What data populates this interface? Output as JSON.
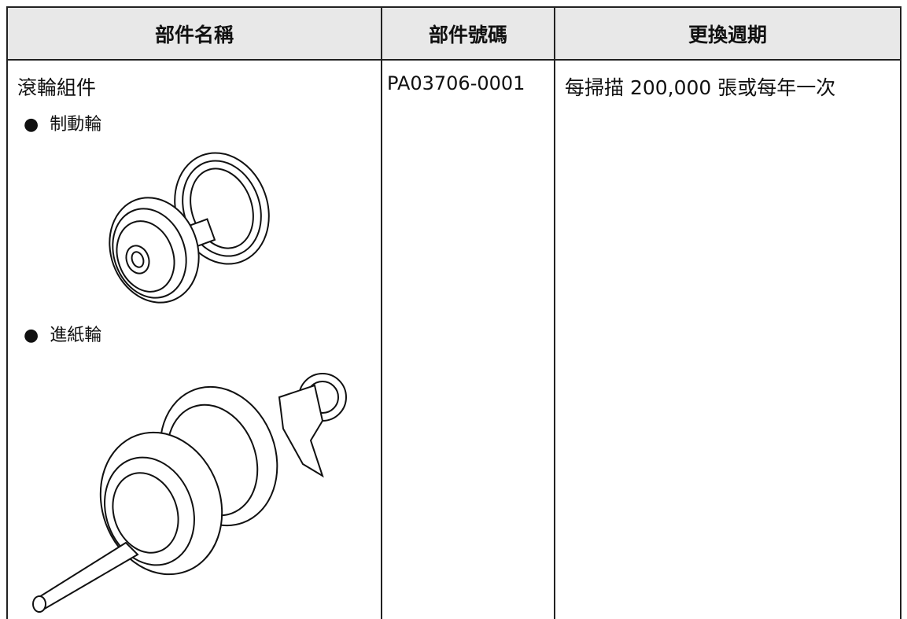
{
  "table": {
    "header": [
      "部件名稱",
      "部件號碼",
      "更換週期"
    ],
    "rows": [
      {
        "name": "滾輪組件",
        "items": [
          "制動輪",
          "進紙輪"
        ],
        "part_number": "PA03706-0001",
        "cycle": "每掃描 200,000 張或每年一次"
      }
    ]
  }
}
